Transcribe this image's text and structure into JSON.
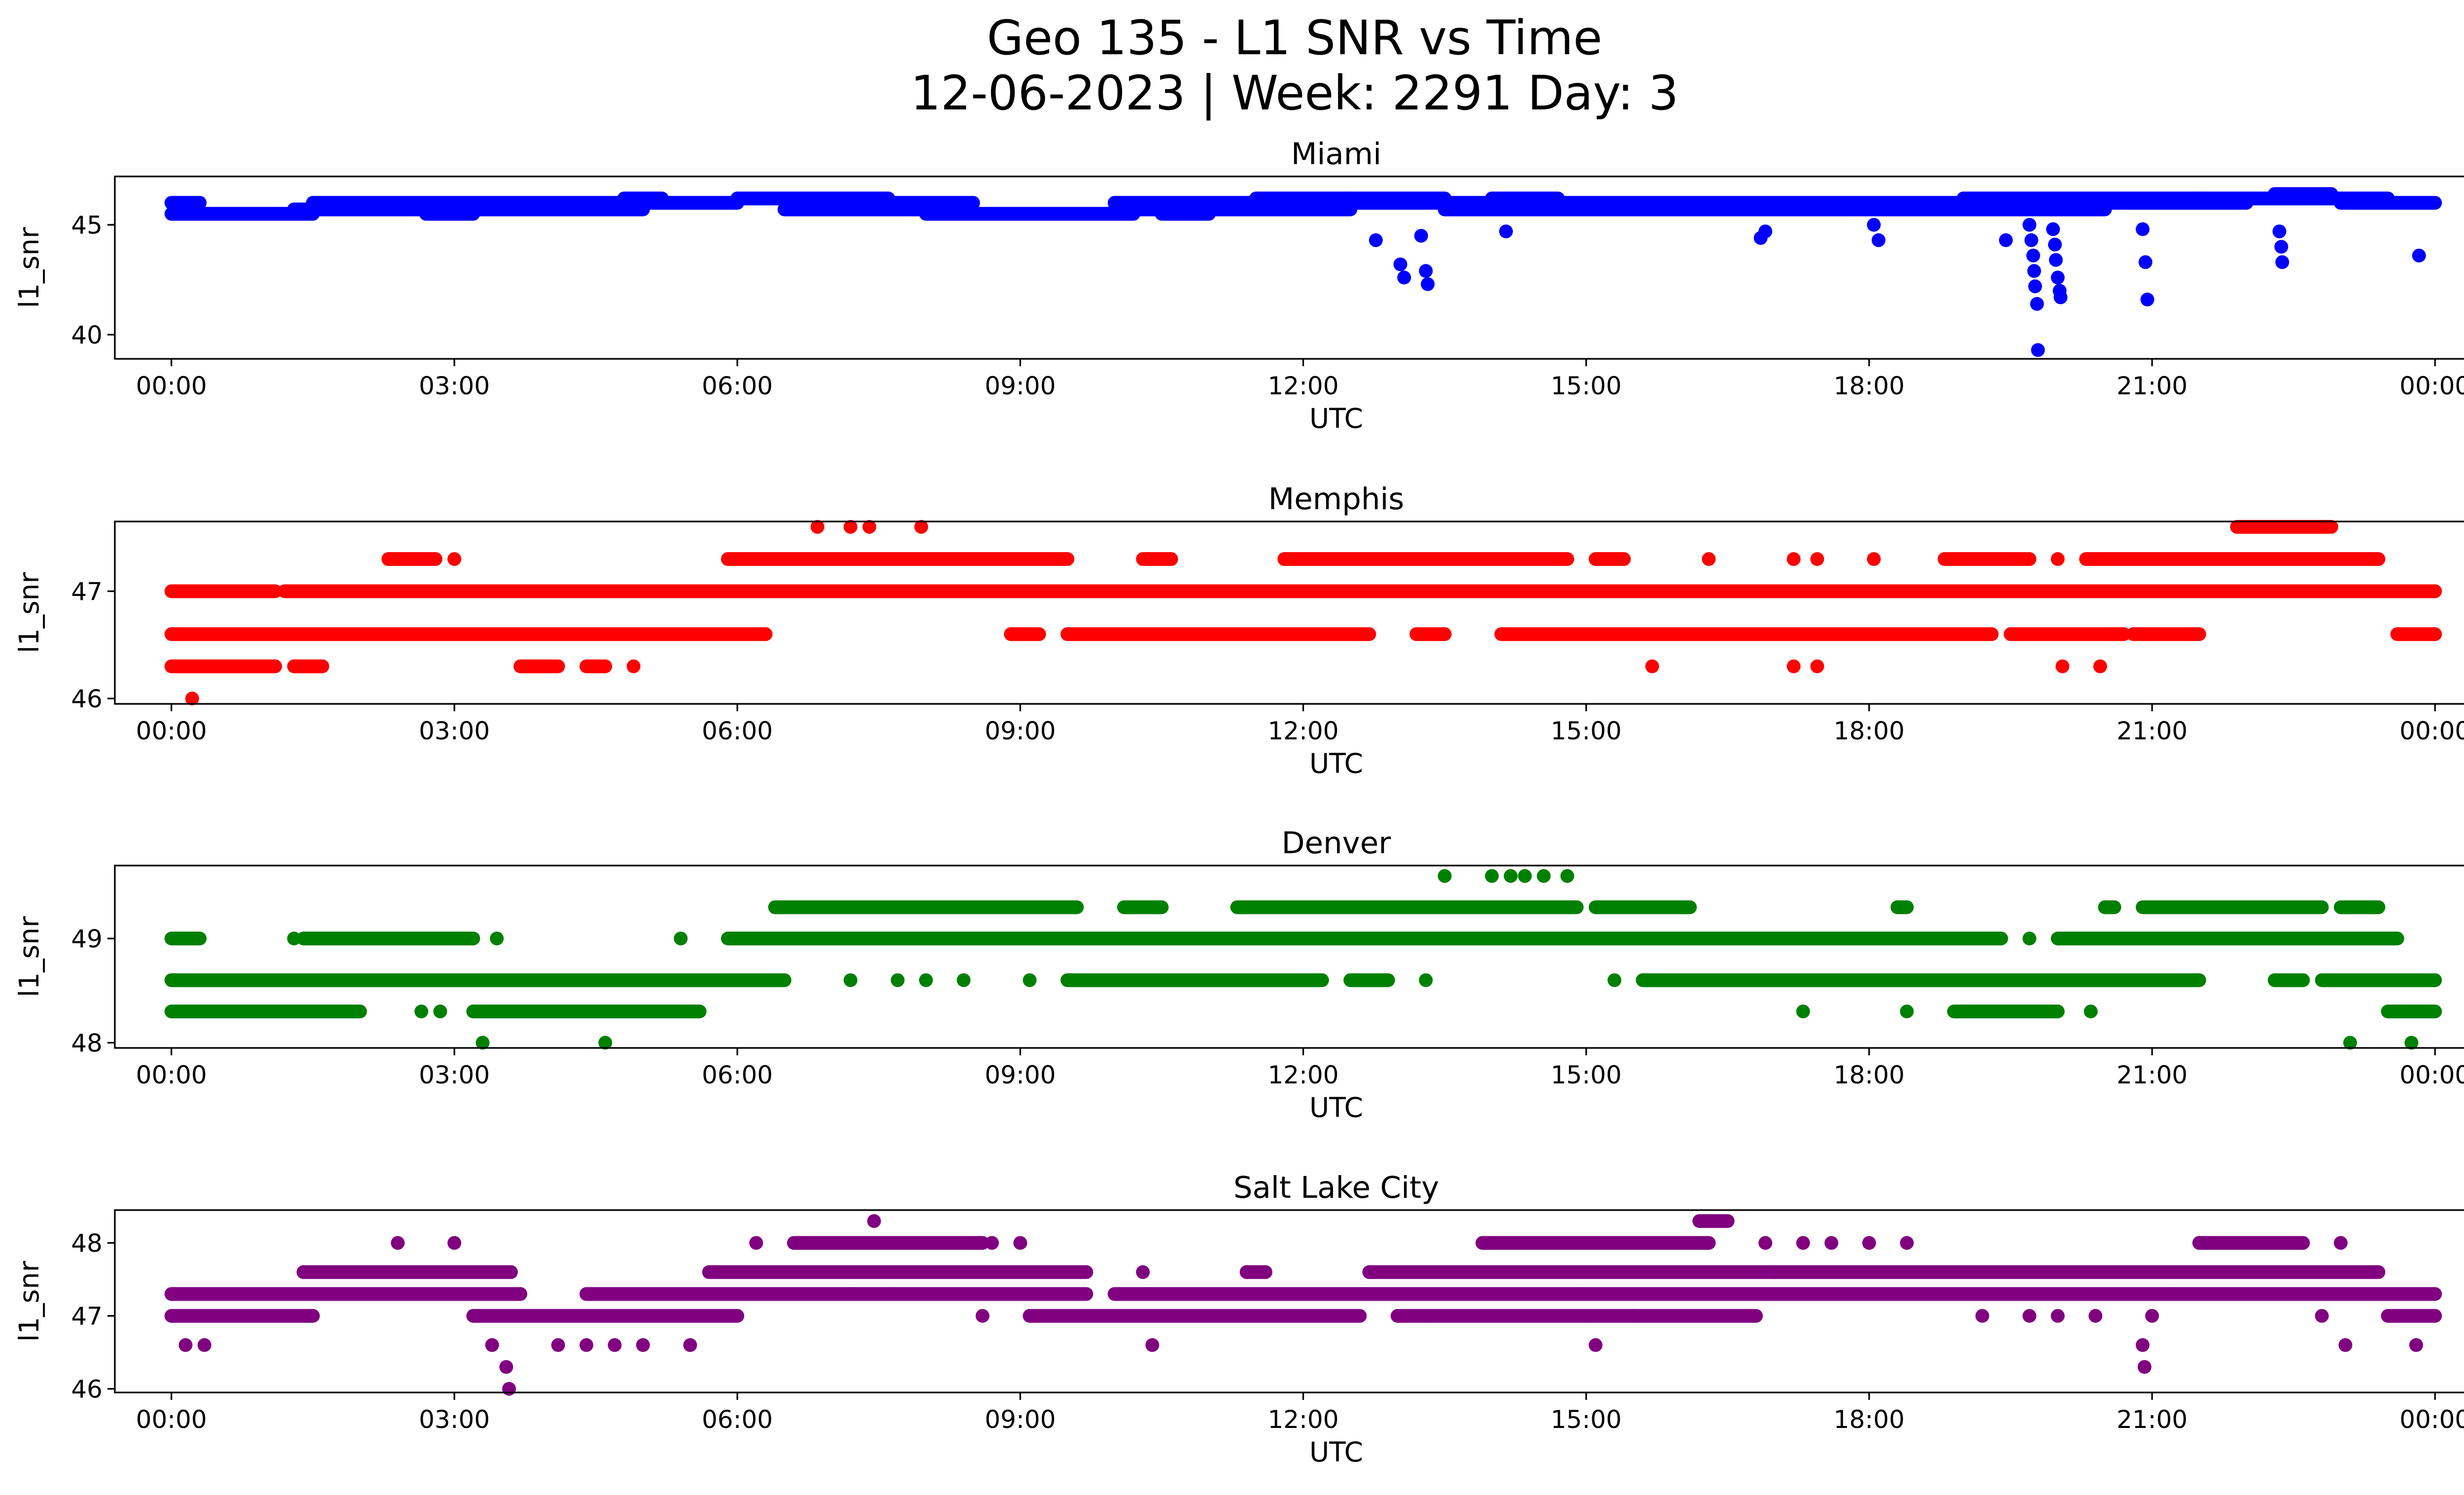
{
  "title_line1": "Geo 135 - L1 SNR vs Time",
  "title_line2": "12-06-2023 | Week: 2291 Day: 3",
  "chart_data": [
    {
      "type": "scatter",
      "title": "Miami",
      "xlabel": "UTC",
      "ylabel": "l1_snr",
      "color": "#0000ff",
      "ylim": [
        38.9,
        47.2
      ],
      "yticks": [
        40,
        45
      ],
      "xticks": [
        "00:00",
        "03:00",
        "06:00",
        "09:00",
        "12:00",
        "15:00",
        "18:00",
        "21:00",
        "00:00"
      ],
      "x_range_hours": [
        -0.6,
        25.3
      ],
      "bands": [
        {
          "y": 45.5,
          "segments": [
            [
              0,
              1.5
            ],
            [
              2.7,
              3.2
            ],
            [
              8.0,
              10.2
            ],
            [
              10.5,
              11.0
            ]
          ]
        },
        {
          "y": 45.7,
          "segments": [
            [
              1.3,
              3.2
            ],
            [
              3.2,
              5.0
            ],
            [
              6.5,
              8.0
            ],
            [
              10.0,
              12.5
            ],
            [
              13.5,
              20.5
            ]
          ]
        },
        {
          "y": 46.0,
          "segments": [
            [
              0,
              0.3
            ],
            [
              1.5,
              6.0
            ],
            [
              7.0,
              8.5
            ],
            [
              10.0,
              12.0
            ],
            [
              12.5,
              19.0
            ],
            [
              20.5,
              22.0
            ],
            [
              23.0,
              24.0
            ]
          ]
        },
        {
          "y": 46.2,
          "segments": [
            [
              4.8,
              5.2
            ],
            [
              6.0,
              7.6
            ],
            [
              11.5,
              12.5
            ],
            [
              12.5,
              13.5
            ],
            [
              14.0,
              14.7
            ],
            [
              19.0,
              21.5
            ],
            [
              21.5,
              23.5
            ]
          ]
        },
        {
          "y": 46.4,
          "segments": [
            [
              22.3,
              22.9
            ]
          ]
        }
      ],
      "points": [
        [
          12.77,
          44.3
        ],
        [
          13.03,
          43.2
        ],
        [
          13.07,
          42.6
        ],
        [
          13.25,
          44.5
        ],
        [
          13.3,
          42.9
        ],
        [
          13.32,
          42.3
        ],
        [
          14.15,
          44.7
        ],
        [
          16.85,
          44.4
        ],
        [
          16.9,
          44.7
        ],
        [
          18.05,
          45.0
        ],
        [
          18.1,
          44.3
        ],
        [
          19.45,
          44.3
        ],
        [
          19.7,
          45.0
        ],
        [
          19.72,
          44.3
        ],
        [
          19.74,
          43.6
        ],
        [
          19.75,
          42.9
        ],
        [
          19.76,
          42.2
        ],
        [
          19.78,
          41.4
        ],
        [
          19.79,
          39.3
        ],
        [
          19.95,
          44.8
        ],
        [
          19.97,
          44.1
        ],
        [
          19.98,
          43.4
        ],
        [
          20.0,
          42.6
        ],
        [
          20.02,
          42.0
        ],
        [
          20.03,
          41.7
        ],
        [
          20.9,
          44.8
        ],
        [
          20.93,
          43.3
        ],
        [
          20.95,
          41.6
        ],
        [
          22.35,
          44.7
        ],
        [
          22.37,
          44.0
        ],
        [
          22.38,
          43.3
        ],
        [
          23.83,
          43.6
        ]
      ]
    },
    {
      "type": "scatter",
      "title": "Memphis",
      "xlabel": "UTC",
      "ylabel": "l1_snr",
      "color": "#ff0000",
      "ylim": [
        45.95,
        47.65
      ],
      "yticks": [
        46,
        47
      ],
      "xticks": [
        "00:00",
        "03:00",
        "06:00",
        "09:00",
        "12:00",
        "15:00",
        "18:00",
        "21:00",
        "00:00"
      ],
      "x_range_hours": [
        -0.6,
        25.3
      ],
      "bands": [
        {
          "y": 46.3,
          "segments": [
            [
              0,
              1.1
            ],
            [
              1.3,
              1.6
            ],
            [
              3.7,
              4.1
            ],
            [
              4.4,
              4.6
            ]
          ]
        },
        {
          "y": 46.6,
          "segments": [
            [
              0,
              6.3
            ],
            [
              8.9,
              9.2
            ],
            [
              9.5,
              12.7
            ],
            [
              13.2,
              13.5
            ],
            [
              14.1,
              19.3
            ],
            [
              19.5,
              20.7
            ],
            [
              20.8,
              21.5
            ],
            [
              23.6,
              24.0
            ]
          ]
        },
        {
          "y": 47.0,
          "segments": [
            [
              0,
              0.2
            ],
            [
              0.2,
              1.1
            ],
            [
              1.2,
              24.0
            ]
          ]
        },
        {
          "y": 47.3,
          "segments": [
            [
              2.3,
              2.8
            ],
            [
              5.9,
              9.5
            ],
            [
              10.3,
              10.6
            ],
            [
              11.8,
              14.8
            ],
            [
              15.1,
              15.4
            ],
            [
              18.8,
              19.7
            ],
            [
              20.3,
              23.4
            ]
          ]
        },
        {
          "y": 47.6,
          "segments": [
            [
              21.9,
              22.9
            ]
          ]
        }
      ],
      "points": [
        [
          0.22,
          46.0
        ],
        [
          4.9,
          46.3
        ],
        [
          15.7,
          46.3
        ],
        [
          17.2,
          46.3
        ],
        [
          17.45,
          46.3
        ],
        [
          20.05,
          46.3
        ],
        [
          20.45,
          46.3
        ],
        [
          3.0,
          47.3
        ],
        [
          16.3,
          47.3
        ],
        [
          17.2,
          47.3
        ],
        [
          17.45,
          47.3
        ],
        [
          18.05,
          47.3
        ],
        [
          20.0,
          47.3
        ],
        [
          6.85,
          47.6
        ],
        [
          7.2,
          47.6
        ],
        [
          7.4,
          47.6
        ],
        [
          7.95,
          47.6
        ]
      ]
    },
    {
      "type": "scatter",
      "title": "Denver",
      "xlabel": "UTC",
      "ylabel": "l1_snr",
      "color": "#008000",
      "ylim": [
        47.95,
        49.7
      ],
      "yticks": [
        48,
        49
      ],
      "xticks": [
        "00:00",
        "03:00",
        "06:00",
        "09:00",
        "12:00",
        "15:00",
        "18:00",
        "21:00",
        "00:00"
      ],
      "x_range_hours": [
        -0.6,
        25.3
      ],
      "bands": [
        {
          "y": 48.3,
          "segments": [
            [
              0,
              2.0
            ],
            [
              3.2,
              5.6
            ],
            [
              18.9,
              20.0
            ],
            [
              23.5,
              24.0
            ]
          ]
        },
        {
          "y": 48.6,
          "segments": [
            [
              0,
              6.5
            ],
            [
              9.5,
              12.2
            ],
            [
              12.5,
              12.9
            ],
            [
              15.6,
              21.5
            ],
            [
              22.3,
              22.6
            ],
            [
              22.8,
              24.0
            ]
          ]
        },
        {
          "y": 49.0,
          "segments": [
            [
              0,
              0.3
            ],
            [
              1.4,
              3.2
            ],
            [
              5.9,
              18.2
            ],
            [
              18.2,
              19.4
            ],
            [
              20.0,
              23.6
            ]
          ]
        },
        {
          "y": 49.3,
          "segments": [
            [
              6.4,
              9.6
            ],
            [
              10.1,
              10.5
            ],
            [
              11.3,
              14.9
            ],
            [
              15.1,
              16.1
            ],
            [
              18.3,
              18.4
            ],
            [
              20.5,
              20.6
            ],
            [
              20.9,
              22.8
            ],
            [
              23.0,
              23.4
            ]
          ]
        }
      ],
      "points": [
        [
          3.3,
          48.0
        ],
        [
          4.6,
          48.0
        ],
        [
          23.1,
          48.0
        ],
        [
          23.75,
          48.0
        ],
        [
          2.65,
          48.3
        ],
        [
          2.85,
          48.3
        ],
        [
          17.3,
          48.3
        ],
        [
          18.4,
          48.3
        ],
        [
          20.35,
          48.3
        ],
        [
          7.2,
          48.6
        ],
        [
          7.7,
          48.6
        ],
        [
          8.0,
          48.6
        ],
        [
          8.4,
          48.6
        ],
        [
          9.1,
          48.6
        ],
        [
          13.3,
          48.6
        ],
        [
          15.3,
          48.6
        ],
        [
          1.3,
          49.0
        ],
        [
          3.45,
          49.0
        ],
        [
          5.4,
          49.0
        ],
        [
          19.7,
          49.0
        ],
        [
          13.5,
          49.6
        ],
        [
          14.0,
          49.6
        ],
        [
          14.2,
          49.6
        ],
        [
          14.35,
          49.6
        ],
        [
          14.55,
          49.6
        ],
        [
          14.8,
          49.6
        ]
      ]
    },
    {
      "type": "scatter",
      "title": "Salt Lake City",
      "xlabel": "UTC",
      "ylabel": "l1_snr",
      "color": "#800080",
      "ylim": [
        45.95,
        48.45
      ],
      "yticks": [
        46,
        47,
        48
      ],
      "xticks": [
        "00:00",
        "03:00",
        "06:00",
        "09:00",
        "12:00",
        "15:00",
        "18:00",
        "21:00",
        "00:00"
      ],
      "x_range_hours": [
        -0.6,
        25.3
      ],
      "bands": [
        {
          "y": 47.0,
          "segments": [
            [
              0,
              1.5
            ],
            [
              3.2,
              6.0
            ],
            [
              9.1,
              12.6
            ],
            [
              13.0,
              16.8
            ],
            [
              23.5,
              24.0
            ]
          ]
        },
        {
          "y": 47.3,
          "segments": [
            [
              0,
              3.7
            ],
            [
              4.4,
              9.7
            ],
            [
              10.0,
              24.0
            ]
          ]
        },
        {
          "y": 47.6,
          "segments": [
            [
              1.4,
              3.6
            ],
            [
              5.7,
              9.7
            ],
            [
              11.4,
              11.6
            ],
            [
              12.7,
              23.4
            ]
          ]
        },
        {
          "y": 48.0,
          "segments": [
            [
              6.6,
              8.6
            ],
            [
              13.9,
              16.3
            ],
            [
              21.5,
              22.6
            ]
          ]
        },
        {
          "y": 48.3,
          "segments": [
            [
              16.2,
              16.5
            ]
          ]
        }
      ],
      "points": [
        [
          0.15,
          46.6
        ],
        [
          0.35,
          46.6
        ],
        [
          3.4,
          46.6
        ],
        [
          3.55,
          46.3
        ],
        [
          3.58,
          46.0
        ],
        [
          4.1,
          46.6
        ],
        [
          4.4,
          46.6
        ],
        [
          4.7,
          46.6
        ],
        [
          5.0,
          46.6
        ],
        [
          5.5,
          46.6
        ],
        [
          10.4,
          46.6
        ],
        [
          15.1,
          46.6
        ],
        [
          20.9,
          46.6
        ],
        [
          20.92,
          46.3
        ],
        [
          23.05,
          46.6
        ],
        [
          23.8,
          46.6
        ],
        [
          8.6,
          47.0
        ],
        [
          9.1,
          47.0
        ],
        [
          13.3,
          47.0
        ],
        [
          15.0,
          47.0
        ],
        [
          15.5,
          47.0
        ],
        [
          19.2,
          47.0
        ],
        [
          19.7,
          47.0
        ],
        [
          20.0,
          47.0
        ],
        [
          20.4,
          47.0
        ],
        [
          21.0,
          47.0
        ],
        [
          22.8,
          47.0
        ],
        [
          7.2,
          47.3
        ],
        [
          7.6,
          47.3
        ],
        [
          14.9,
          47.3
        ],
        [
          21.2,
          47.3
        ],
        [
          10.3,
          47.6
        ],
        [
          11.4,
          47.6
        ],
        [
          17.0,
          47.6
        ],
        [
          2.4,
          48.0
        ],
        [
          3.0,
          48.0
        ],
        [
          6.2,
          48.0
        ],
        [
          8.7,
          48.0
        ],
        [
          9.0,
          48.0
        ],
        [
          16.9,
          48.0
        ],
        [
          17.3,
          48.0
        ],
        [
          17.6,
          48.0
        ],
        [
          18.0,
          48.0
        ],
        [
          18.4,
          48.0
        ],
        [
          23.0,
          48.0
        ],
        [
          7.45,
          48.3
        ]
      ]
    }
  ]
}
